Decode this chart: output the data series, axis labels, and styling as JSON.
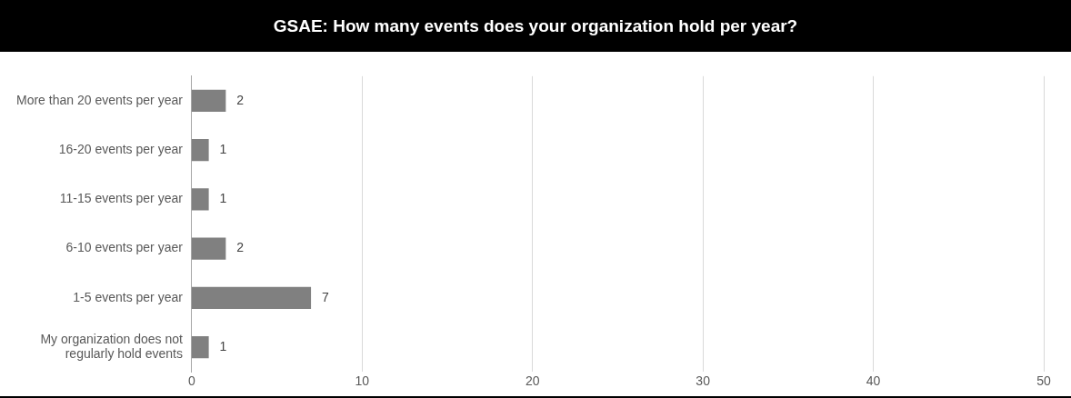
{
  "chart_data": {
    "type": "bar",
    "orientation": "horizontal",
    "title": "GSAE: How many events does your organization hold per year?",
    "categories": [
      "More than 20 events per year",
      "16-20 events per year",
      "11-15 events per year",
      "6-10 events per yaer",
      "1-5 events per year",
      "My organization does not regularly hold events"
    ],
    "values": [
      2,
      1,
      1,
      2,
      7,
      1
    ],
    "color": "#808080",
    "xlim": [
      0,
      50
    ],
    "xticks": [
      0,
      10,
      20,
      30,
      40,
      50
    ],
    "grid": "x",
    "data_labels": true
  }
}
